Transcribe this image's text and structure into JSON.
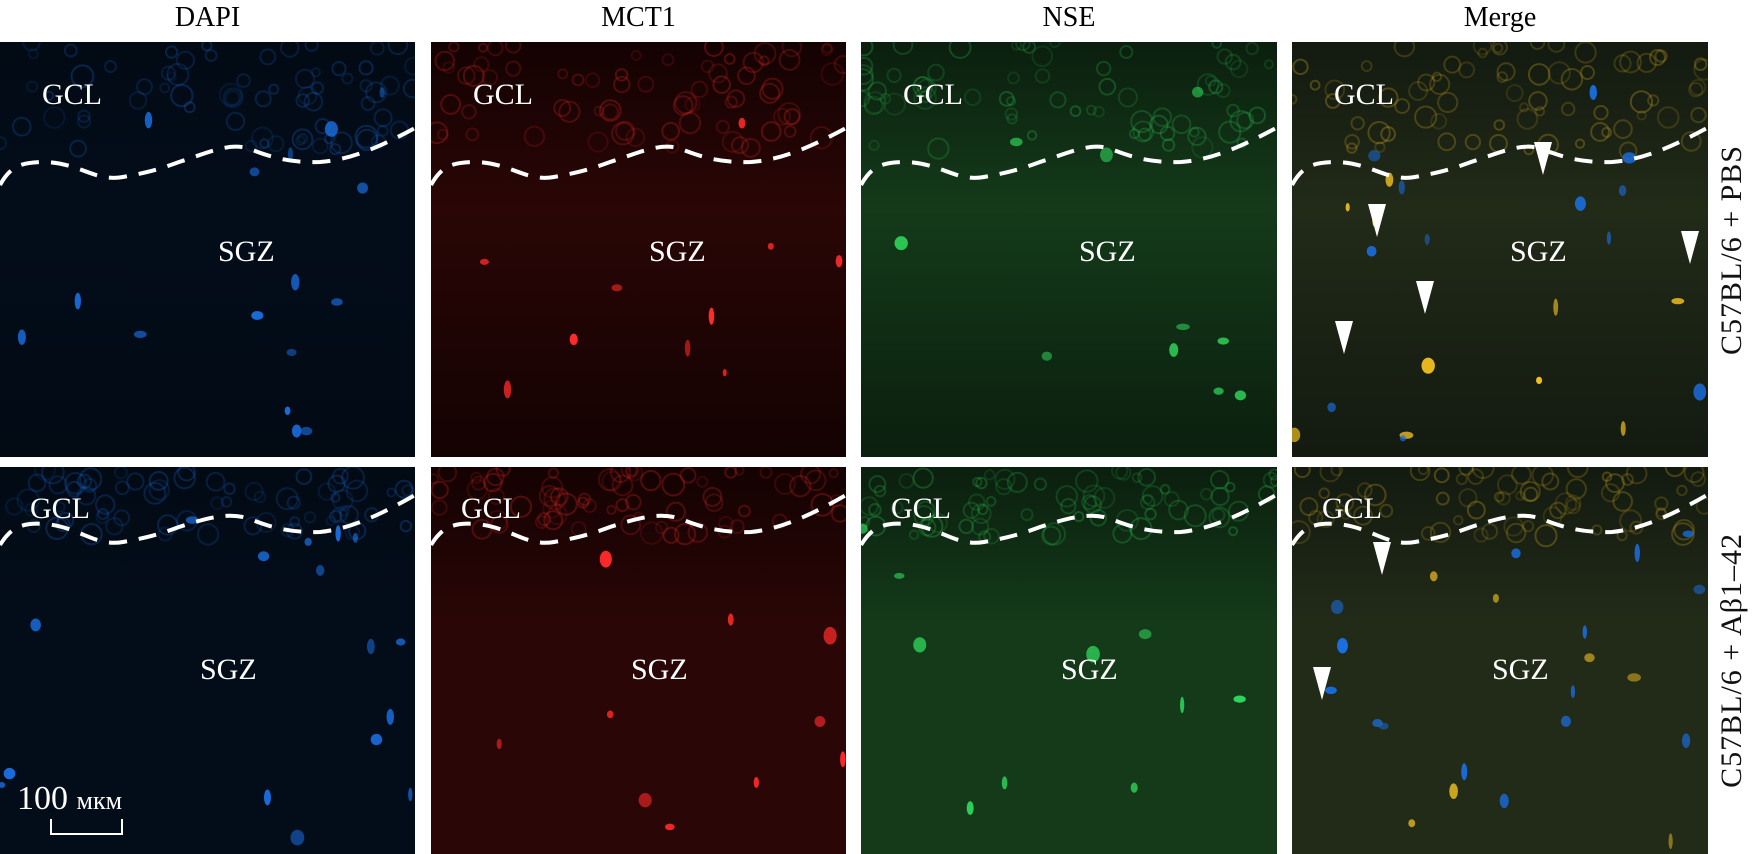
{
  "columns": [
    {
      "label": "DAPI",
      "color": "#1f5fb4"
    },
    {
      "label": "MCT1",
      "color": "#e8202a"
    },
    {
      "label": "NSE",
      "color": "#1ca64a"
    },
    {
      "label": "Merge",
      "color": "#222222"
    }
  ],
  "rows": [
    {
      "label": "C57BL/6 + PBS"
    },
    {
      "label": "C57BL/6 + Aβ1–42"
    }
  ],
  "regions": {
    "upper": "GCL",
    "lower": "SGZ"
  },
  "scale_bar": {
    "value": "100",
    "unit": "мкм"
  },
  "channel_colors": {
    "DAPI": "#1a6ee0",
    "MCT1": "#ff2a2a",
    "NSE": "#2fd35a",
    "Merge_colocalization": "#f0c020"
  },
  "annotations": {
    "arrowhead_counts": [
      5,
      2
    ],
    "boundary": "dashed white line"
  }
}
